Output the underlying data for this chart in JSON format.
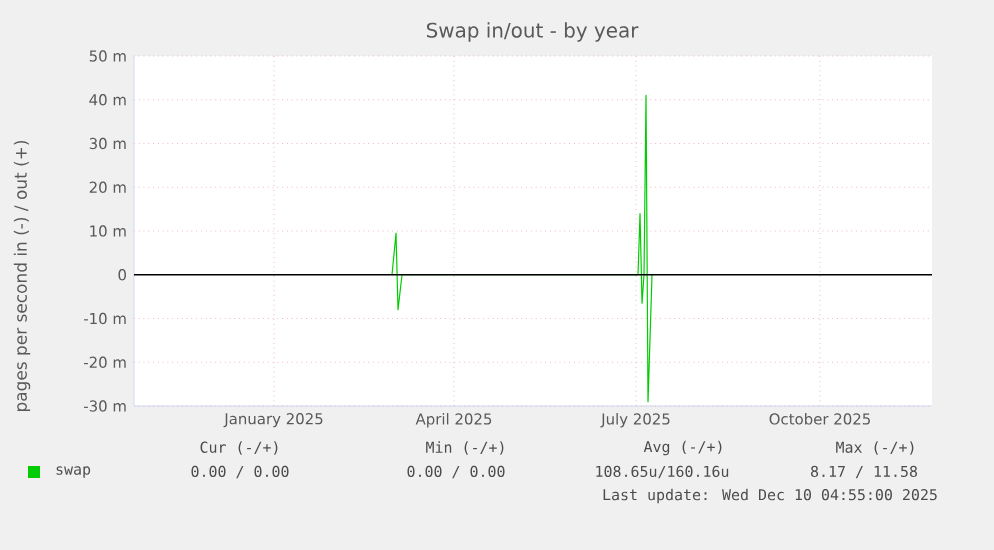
{
  "chart_data": {
    "type": "line",
    "title": "Swap in/out - by year",
    "ylabel": "pages per second in (-) / out (+)",
    "xlim": [
      "2024-10-23",
      "2025-11-26"
    ],
    "xticks": [
      {
        "value": "2025-01-01",
        "label": "January 2025"
      },
      {
        "value": "2025-04-01",
        "label": "April 2025"
      },
      {
        "value": "2025-07-01",
        "label": "July 2025"
      },
      {
        "value": "2025-10-01",
        "label": "October 2025"
      }
    ],
    "ylim": [
      -30,
      50
    ],
    "yticks": [
      {
        "value": -30,
        "label": "-30 m"
      },
      {
        "value": -20,
        "label": "-20 m"
      },
      {
        "value": -10,
        "label": "-10 m"
      },
      {
        "value": 0,
        "label": "0"
      },
      {
        "value": 10,
        "label": "10 m"
      },
      {
        "value": 20,
        "label": "20 m"
      },
      {
        "value": 30,
        "label": "30 m"
      },
      {
        "value": 40,
        "label": "40 m"
      },
      {
        "value": 50,
        "label": "50 m"
      }
    ],
    "grid": true,
    "legend": "bottom left",
    "marker": "none",
    "line_style": "solid",
    "ref_lines": [
      {
        "axis": "y",
        "value": 0,
        "color": "#000000"
      }
    ],
    "series": [
      {
        "name": "swap",
        "color": "#00cc00",
        "x": [
          "2025-03-01",
          "2025-03-03",
          "2025-03-04",
          "2025-03-06",
          "2025-07-02",
          "2025-07-03",
          "2025-07-04",
          "2025-07-05",
          "2025-07-06",
          "2025-07-07",
          "2025-07-09"
        ],
        "values": [
          0,
          9.5,
          -8,
          0,
          0,
          14,
          -6.5,
          0,
          41,
          -29,
          0
        ]
      }
    ],
    "annotations": [
      "Cur (-/+)",
      "Min (-/+)",
      "Avg (-/+)",
      "Max (-/+)",
      "0.00 / 0.00",
      "0.00 / 0.00",
      "108.65u/160.16u",
      "8.17 / 11.58",
      "Last update: Wed Dec 10 04:55:00 2025"
    ]
  }
}
